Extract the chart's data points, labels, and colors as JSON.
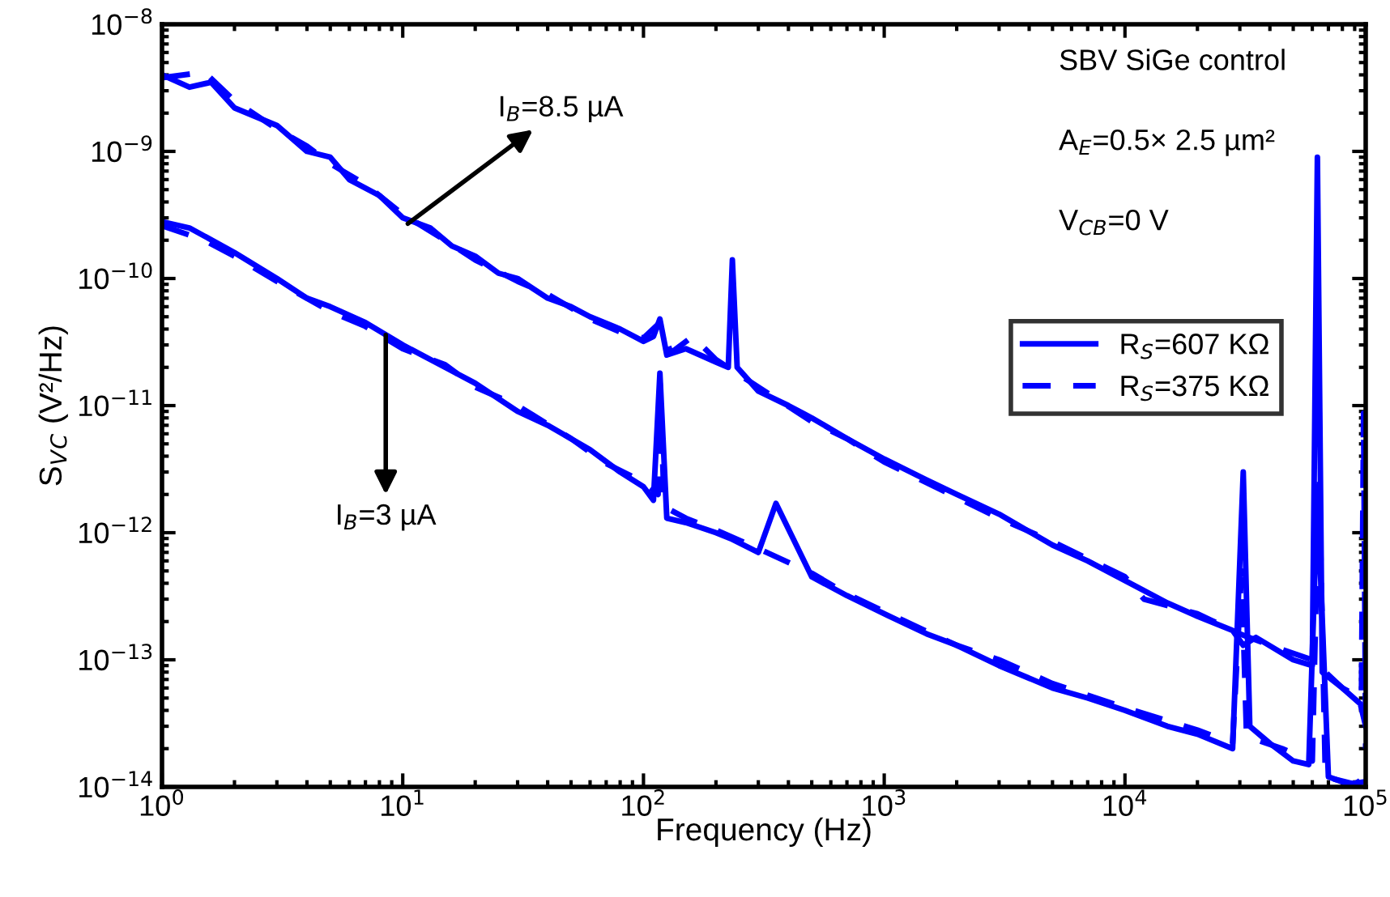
{
  "chart_data": {
    "type": "line",
    "xlabel": "Frequency (Hz)",
    "ylabel": "S$_{V}$$_{C}$ (V²/Hz)",
    "log": "xy",
    "grid": false,
    "legend": "right",
    "xlim": [
      1,
      100000
    ],
    "ylim": [
      1e-14,
      1e-08
    ],
    "xticks": [
      {
        "value": 1,
        "label": "10$^{0}$"
      },
      {
        "value": 10,
        "label": "10$^{1}$"
      },
      {
        "value": 100,
        "label": "10$^{2}$"
      },
      {
        "value": 1000,
        "label": "10$^{3}$"
      },
      {
        "value": 10000,
        "label": "10$^{4}$"
      },
      {
        "value": 100000,
        "label": "10$^{5}$"
      }
    ],
    "yticks": [
      {
        "value": 1e-14,
        "label": "10$^{−14}$"
      },
      {
        "value": 1e-13,
        "label": "10$^{−13}$"
      },
      {
        "value": 1e-12,
        "label": "10$^{−12}$"
      },
      {
        "value": 1e-11,
        "label": "10$^{−11}$"
      },
      {
        "value": 1e-10,
        "label": "10$^{−10}$"
      },
      {
        "value": 1e-09,
        "label": "10$^{−9}$"
      },
      {
        "value": 1e-08,
        "label": "10$^{−8}$"
      }
    ],
    "series": [
      {
        "name": "R$_{S}$=607 KΩ",
        "color": "#0000ff",
        "line_style": "solid",
        "x": [
          1,
          1.3,
          1.6,
          2,
          3,
          4,
          5,
          6,
          8,
          10,
          13,
          16,
          20,
          25,
          30,
          40,
          50,
          60,
          80,
          100,
          110,
          117,
          125,
          150,
          200,
          225,
          234,
          245,
          300,
          400,
          500,
          700,
          1000,
          1500,
          2000,
          3000,
          5000,
          7000,
          10000,
          15000,
          20000,
          28000,
          31000,
          35000,
          50000,
          60000,
          63000,
          66000,
          80000,
          95000,
          100000
        ],
        "values": [
          4e-09,
          3.2e-09,
          3.5e-09,
          2.2e-09,
          1.6e-09,
          1e-09,
          9e-10,
          6e-10,
          4.5e-10,
          3e-10,
          2.5e-10,
          1.8e-10,
          1.5e-10,
          1.1e-10,
          1e-10,
          7e-11,
          6e-11,
          5e-11,
          4e-11,
          3.2e-11,
          3.5e-11,
          4.8e-11,
          2.5e-11,
          2.8e-11,
          2.2e-11,
          2e-11,
          1.4e-10,
          2e-11,
          1.3e-11,
          1e-11,
          8e-12,
          5.5e-12,
          3.8e-12,
          2.6e-12,
          2e-12,
          1.4e-12,
          8e-13,
          6e-13,
          4.2e-13,
          2.8e-13,
          2.2e-13,
          1.7e-13,
          1.3e-13,
          1.5e-13,
          1e-13,
          9e-14,
          9e-10,
          8e-14,
          6e-14,
          4.5e-14,
          3e-14
        ]
      },
      {
        "name": "R$_{S}$=375 KΩ",
        "color": "#0000ff",
        "line_style": "dashed",
        "x": [
          1,
          1.5,
          2,
          3,
          4,
          5,
          7,
          10,
          15,
          20,
          30,
          40,
          60,
          80,
          100,
          117,
          130,
          160,
          200,
          300,
          500,
          700,
          1000,
          2000,
          3000,
          5000,
          10000,
          12000,
          20000,
          30000,
          40000,
          60000,
          80000,
          96000,
          98000,
          100000
        ],
        "values": [
          3.8e-09,
          4.2e-09,
          2.5e-09,
          1.5e-09,
          1.1e-09,
          8e-10,
          5.5e-10,
          3.2e-10,
          2e-10,
          1.4e-10,
          9.5e-11,
          7.5e-11,
          4.8e-11,
          3.8e-11,
          3.4e-11,
          4.5e-11,
          2.6e-11,
          3.5e-11,
          2.3e-11,
          1.4e-11,
          7.5e-12,
          5.5e-12,
          3.6e-12,
          1.9e-12,
          1.3e-12,
          8.5e-13,
          4.5e-13,
          3e-13,
          2.3e-13,
          1.6e-13,
          1.3e-13,
          1e-13,
          6e-14,
          5e-14,
          8.7e-12,
          2e-14
        ]
      },
      {
        "color": "#0000ff",
        "line_style": "solid",
        "x": [
          1,
          1.3,
          2,
          3,
          4,
          5,
          7,
          10,
          15,
          20,
          30,
          40,
          60,
          80,
          100,
          110,
          117,
          125,
          150,
          200,
          230,
          300,
          355,
          500,
          700,
          1000,
          1500,
          2000,
          3000,
          5000,
          7000,
          10000,
          15000,
          20000,
          28000,
          31000,
          33000,
          40000,
          50000,
          58000,
          63000,
          70000,
          85000,
          100000
        ],
        "values": [
          2.8e-10,
          2.5e-10,
          1.6e-10,
          1e-10,
          7e-11,
          6e-11,
          4.5e-11,
          3e-11,
          2e-11,
          1.5e-11,
          9e-12,
          7e-12,
          4.5e-12,
          3e-12,
          2.3e-12,
          1.8e-12,
          1.8e-11,
          1.3e-12,
          1.2e-12,
          1e-12,
          9e-13,
          7e-13,
          1.7e-12,
          4.5e-13,
          3.2e-13,
          2.3e-13,
          1.6e-13,
          1.3e-13,
          9e-14,
          6e-14,
          5e-14,
          4e-14,
          3e-14,
          2.6e-14,
          2e-14,
          3e-12,
          3e-14,
          2.2e-14,
          1.6e-14,
          1.5e-14,
          2e-12,
          1.2e-14,
          1.05e-14,
          1.1e-14
        ]
      },
      {
        "color": "#0000ff",
        "line_style": "dashed",
        "x": [
          1,
          1.5,
          2,
          3,
          5,
          7,
          10,
          15,
          20,
          30,
          50,
          70,
          100,
          115,
          117,
          122,
          150,
          200,
          300,
          500,
          700,
          1000,
          2000,
          3000,
          5000,
          10000,
          20000,
          28000,
          30500,
          32000,
          45000,
          60000,
          64000,
          68000,
          90000,
          100000
        ],
        "values": [
          2.6e-10,
          2e-10,
          1.5e-10,
          9.5e-11,
          5.5e-11,
          4.2e-11,
          2.8e-11,
          2.1e-11,
          1.4e-11,
          1e-11,
          5.5e-12,
          3.5e-12,
          2.5e-12,
          2e-12,
          1.5e-11,
          1.6e-12,
          1.3e-12,
          1.05e-12,
          7.5e-13,
          4.8e-13,
          3.3e-13,
          2.4e-13,
          1.3e-13,
          1e-13,
          6.5e-14,
          4.2e-14,
          2.8e-14,
          2.2e-14,
          5e-13,
          2.5e-14,
          2e-14,
          1.6e-14,
          3e-12,
          1.2e-14,
          1.05e-14,
          1.2e-14
        ]
      }
    ],
    "annotations": [
      "SBV SiGe control",
      "A$_{E}$=0.5× 2.5 µm²",
      "V$_{CB}$=0 V",
      {
        "text": "I$_{B}$=8.5 µA",
        "x": 10.5,
        "y": 2.7e-10
      },
      {
        "text": "I$_{B}$=3 µA",
        "x": 8.5,
        "y": 3.6e-11
      }
    ]
  }
}
